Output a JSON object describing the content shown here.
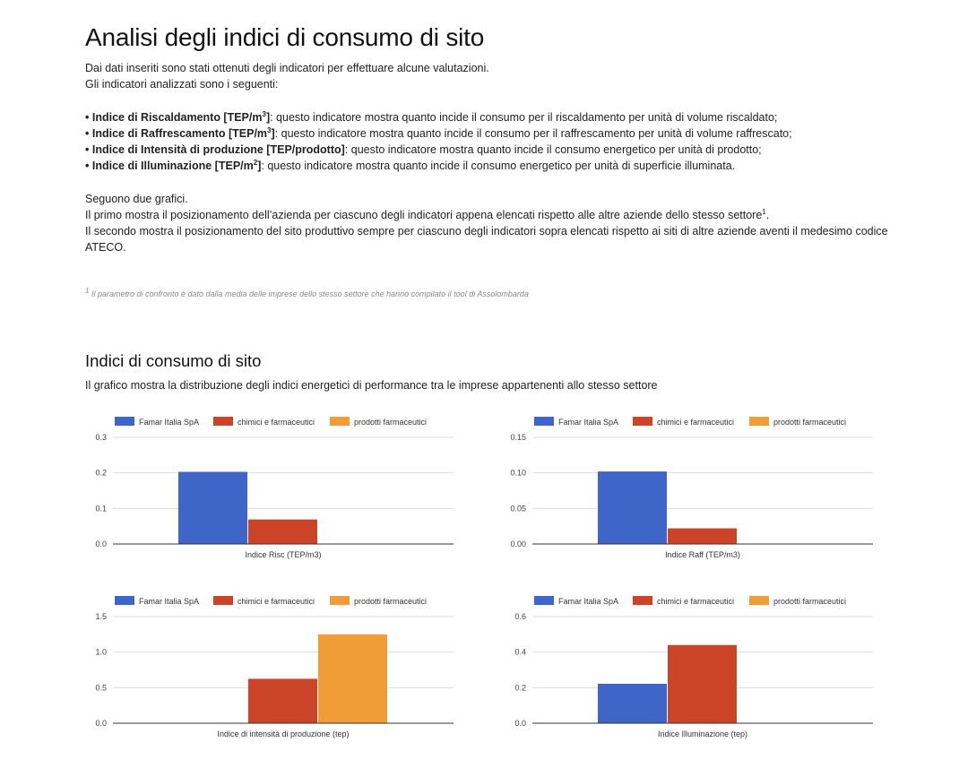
{
  "page": {
    "title": "Analisi degli indici di consumo di sito",
    "intro_lines": [
      "Dai dati inseriti sono stati ottenuti degli indicatori per effettuare alcune valutazioni.",
      "Gli indicatori analizzati sono i seguenti:"
    ],
    "indicators": [
      {
        "bullet": "• ",
        "name": "Indice di Riscaldamento [TEP/m",
        "sup": "3",
        "close": "]",
        "desc": ": questo indicatore mostra quanto incide il consumo per il riscaldamento per unità di volume riscaldato;"
      },
      {
        "bullet": "• ",
        "name": "Indice di Raffrescamento [TEP/m",
        "sup": "3",
        "close": "]",
        "desc": ": questo indicatore mostra quanto incide il consumo per il raffrescamento per unità di volume raffrescato;"
      },
      {
        "bullet": "• ",
        "name": "Indice di Intensità di produzione [TEP/prodotto]",
        "sup": "",
        "close": "",
        "desc": ": questo indicatore mostra quanto incide il consumo energetico per unità di prodotto;"
      },
      {
        "bullet": "• ",
        "name": "Indice di Illuminazione [TEP/m",
        "sup": "2",
        "close": "]",
        "desc": ": questo indicatore mostra quanto incide il consumo energetico per unità di superficie illuminata."
      }
    ],
    "follow_line": "Seguono due grafici.",
    "first_line": "Il primo mostra il posizionamento dell’azienda per ciascuno degli indicatori appena elencati rispetto alle altre aziende dello stesso settore",
    "first_sup": "1",
    "first_end": ".",
    "second_line": "Il secondo mostra il posizionamento del sito produttivo sempre per ciascuno degli indicatori sopra elencati rispetto ai siti di altre aziende aventi il medesimo codice ATECO.",
    "footnote_sup": "1",
    "footnote": " Il parametro di confronto è dato dalla media delle imprese dello stesso settore che hanno compilato il tool di Assolombarda"
  },
  "section": {
    "title": "Indici di consumo di sito",
    "description": "Il grafico mostra la distribuzione degli indici energetici di performance tra le imprese appartenenti allo stesso settore"
  },
  "colors": {
    "famar": "#3e66c8",
    "chimici": "#cc4428",
    "prodotti": "#f09c37",
    "grid": "#dddddd",
    "axis": "#333333",
    "tick": "#444444"
  },
  "chart_data": [
    {
      "type": "bar",
      "xlabel": "Indice Risc (TEP/m3)",
      "ylim": [
        0,
        0.3
      ],
      "yticks": [
        "0.0",
        "0.1",
        "0.2",
        "0.3"
      ],
      "legend": "top",
      "grid": true,
      "series": [
        {
          "name": "Famar Italia SpA",
          "color_key": "famar",
          "values": [
            0.203
          ]
        },
        {
          "name": "chimici e farmaceutici",
          "color_key": "chimici",
          "values": [
            0.069
          ]
        },
        {
          "name": "prodotti farmaceutici",
          "color_key": "prodotti",
          "values": [
            0
          ]
        }
      ]
    },
    {
      "type": "bar",
      "xlabel": "Indice Raff (TEP/m3)",
      "ylim": [
        0,
        0.15
      ],
      "yticks": [
        "0.00",
        "0.05",
        "0.10",
        "0.15"
      ],
      "legend": "top",
      "grid": true,
      "series": [
        {
          "name": "Famar Italia SpA",
          "color_key": "famar",
          "values": [
            0.102
          ]
        },
        {
          "name": "chimici e farmaceutici",
          "color_key": "chimici",
          "values": [
            0.022
          ]
        },
        {
          "name": "prodotti farmaceutici",
          "color_key": "prodotti",
          "values": [
            0
          ]
        }
      ]
    },
    {
      "type": "bar",
      "xlabel": "Indice di intensità di produzione (tep)",
      "ylim": [
        0,
        1.5
      ],
      "yticks": [
        "0.0",
        "0.5",
        "1.0",
        "1.5"
      ],
      "legend": "top",
      "grid": true,
      "series": [
        {
          "name": "Famar Italia SpA",
          "color_key": "famar",
          "values": [
            0
          ]
        },
        {
          "name": "chimici e farmaceutici",
          "color_key": "chimici",
          "values": [
            0.625
          ]
        },
        {
          "name": "prodotti farmaceutici",
          "color_key": "prodotti",
          "values": [
            1.25
          ]
        }
      ]
    },
    {
      "type": "bar",
      "xlabel": "Indice Illuminazione (tep)",
      "ylim": [
        0,
        0.6
      ],
      "yticks": [
        "0.0",
        "0.2",
        "0.4",
        "0.6"
      ],
      "legend": "top",
      "grid": true,
      "series": [
        {
          "name": "Famar Italia SpA",
          "color_key": "famar",
          "values": [
            0.222
          ]
        },
        {
          "name": "chimici e farmaceutici",
          "color_key": "chimici",
          "values": [
            0.44
          ]
        },
        {
          "name": "prodotti farmaceutici",
          "color_key": "prodotti",
          "values": [
            0
          ]
        }
      ]
    }
  ]
}
